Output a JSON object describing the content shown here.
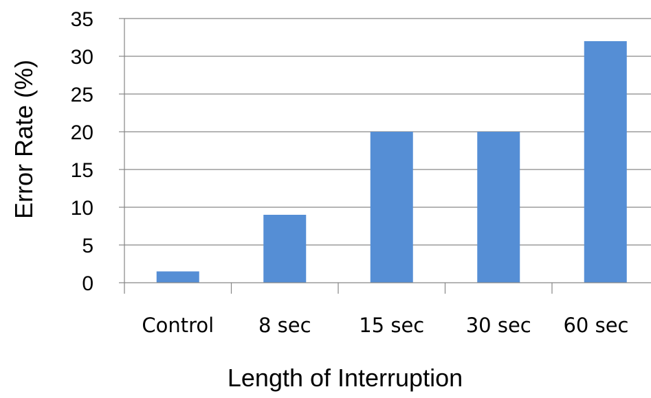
{
  "chart_data": {
    "type": "bar",
    "categories": [
      "Control",
      "8 sec",
      "15 sec",
      "30 sec",
      "60 sec"
    ],
    "values": [
      1.5,
      9,
      20,
      20,
      32
    ],
    "title": "",
    "xlabel": "Length of Interruption",
    "ylabel": "Error Rate (%)",
    "ylim": [
      0,
      35
    ],
    "yticks": [
      "0",
      "5",
      "10",
      "15",
      "20",
      "25",
      "30",
      "35"
    ],
    "grid": true,
    "legend": "none",
    "bar_color": "#558ED5"
  }
}
